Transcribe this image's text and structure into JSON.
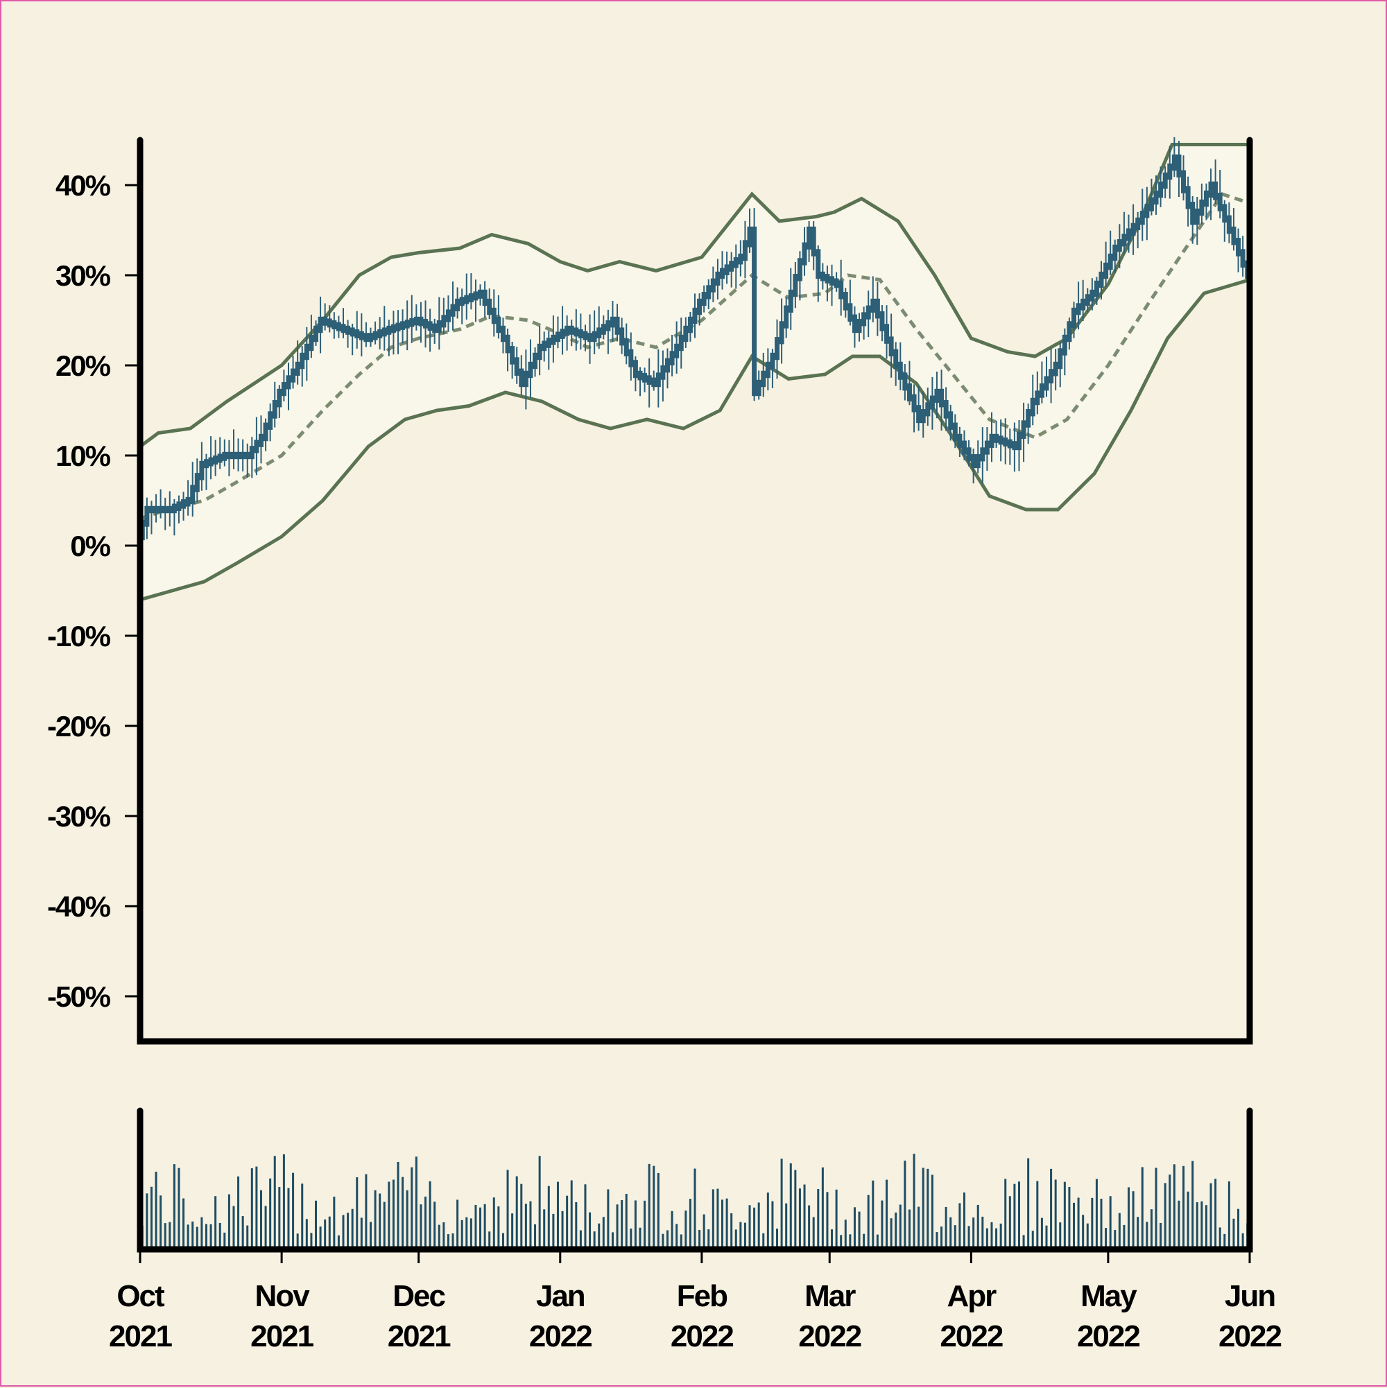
{
  "colors": {
    "background": "#f6f1e1",
    "band_fill": "#f9f6ea",
    "band_line": "#5a7352",
    "sma_line": "#7c8c72",
    "candle": "#2d5f77",
    "volume": "#1f4d63",
    "axis": "#000000"
  },
  "chart_data": {
    "type": "candlestick",
    "title": "",
    "xlabel": "",
    "ylabel": "",
    "y_format": "percent",
    "ylim": [
      -55,
      45
    ],
    "y_ticks": [
      {
        "value": 40,
        "label": "40%"
      },
      {
        "value": 30,
        "label": "30%"
      },
      {
        "value": 20,
        "label": "20%"
      },
      {
        "value": 10,
        "label": "10%"
      },
      {
        "value": 0,
        "label": "0%"
      },
      {
        "value": -10,
        "label": "-10%"
      },
      {
        "value": -20,
        "label": "-20%"
      },
      {
        "value": -30,
        "label": "-30%"
      },
      {
        "value": -40,
        "label": "-40%"
      },
      {
        "value": -50,
        "label": "-50%"
      }
    ],
    "x_range": [
      "2021-10-01",
      "2022-06-01"
    ],
    "x_ticks": [
      {
        "date": "2021-10-01",
        "month": "Oct",
        "year": "2021"
      },
      {
        "date": "2021-11-01",
        "month": "Nov",
        "year": "2021"
      },
      {
        "date": "2021-12-01",
        "month": "Dec",
        "year": "2021"
      },
      {
        "date": "2022-01-01",
        "month": "Jan",
        "year": "2022"
      },
      {
        "date": "2022-02-01",
        "month": "Feb",
        "year": "2022"
      },
      {
        "date": "2022-03-01",
        "month": "Mar",
        "year": "2022"
      },
      {
        "date": "2022-04-01",
        "month": "Apr",
        "year": "2022"
      },
      {
        "date": "2022-05-01",
        "month": "May",
        "year": "2022"
      },
      {
        "date": "2022-06-01",
        "month": "Jun",
        "year": "2022"
      }
    ],
    "price": [
      [
        "2021-10-01",
        1
      ],
      [
        "2021-10-03",
        4
      ],
      [
        "2021-10-08",
        4
      ],
      [
        "2021-10-12",
        5
      ],
      [
        "2021-10-15",
        9
      ],
      [
        "2021-10-20",
        10
      ],
      [
        "2021-10-25",
        10
      ],
      [
        "2021-10-28",
        12
      ],
      [
        "2021-11-01",
        17
      ],
      [
        "2021-11-05",
        20
      ],
      [
        "2021-11-10",
        25
      ],
      [
        "2021-11-15",
        24
      ],
      [
        "2021-11-20",
        23
      ],
      [
        "2021-11-25",
        24
      ],
      [
        "2021-12-01",
        25
      ],
      [
        "2021-12-05",
        24
      ],
      [
        "2021-12-10",
        27
      ],
      [
        "2021-12-15",
        28
      ],
      [
        "2021-12-20",
        23
      ],
      [
        "2021-12-24",
        18
      ],
      [
        "2021-12-28",
        22
      ],
      [
        "2022-01-03",
        24
      ],
      [
        "2022-01-08",
        23
      ],
      [
        "2022-01-13",
        25
      ],
      [
        "2022-01-18",
        19
      ],
      [
        "2022-01-22",
        18
      ],
      [
        "2022-01-27",
        22
      ],
      [
        "2022-02-01",
        27
      ],
      [
        "2022-02-05",
        30
      ],
      [
        "2022-02-10",
        32
      ],
      [
        "2022-02-12",
        35
      ],
      [
        "2022-02-13",
        17
      ],
      [
        "2022-02-17",
        21
      ],
      [
        "2022-02-21",
        28
      ],
      [
        "2022-02-25",
        35
      ],
      [
        "2022-02-27",
        30
      ],
      [
        "2022-03-03",
        29
      ],
      [
        "2022-03-07",
        24
      ],
      [
        "2022-03-11",
        27
      ],
      [
        "2022-03-16",
        20
      ],
      [
        "2022-03-21",
        14
      ],
      [
        "2022-03-25",
        17
      ],
      [
        "2022-03-29",
        12
      ],
      [
        "2022-04-02",
        9
      ],
      [
        "2022-04-06",
        12
      ],
      [
        "2022-04-11",
        11
      ],
      [
        "2022-04-15",
        16
      ],
      [
        "2022-04-20",
        20
      ],
      [
        "2022-04-24",
        26
      ],
      [
        "2022-04-28",
        28
      ],
      [
        "2022-05-03",
        33
      ],
      [
        "2022-05-08",
        36
      ],
      [
        "2022-05-12",
        39
      ],
      [
        "2022-05-16",
        43
      ],
      [
        "2022-05-20",
        36
      ],
      [
        "2022-05-24",
        40
      ],
      [
        "2022-05-28",
        35
      ],
      [
        "2022-06-01",
        30
      ]
    ],
    "sma": [
      [
        "2021-10-01",
        3
      ],
      [
        "2021-10-07",
        4
      ],
      [
        "2021-10-15",
        5
      ],
      [
        "2021-10-22",
        7
      ],
      [
        "2021-11-01",
        10
      ],
      [
        "2021-11-10",
        15
      ],
      [
        "2021-11-18",
        19
      ],
      [
        "2021-11-25",
        22
      ],
      [
        "2021-12-01",
        23
      ],
      [
        "2021-12-10",
        24
      ],
      [
        "2021-12-17",
        25.5
      ],
      [
        "2021-12-25",
        25
      ],
      [
        "2022-01-01",
        23.5
      ],
      [
        "2022-01-07",
        22
      ],
      [
        "2022-01-14",
        23
      ],
      [
        "2022-01-22",
        22
      ],
      [
        "2022-02-01",
        25
      ],
      [
        "2022-02-12",
        30
      ],
      [
        "2022-02-20",
        27.5
      ],
      [
        "2022-02-28",
        28
      ],
      [
        "2022-03-05",
        30
      ],
      [
        "2022-03-12",
        29.5
      ],
      [
        "2022-03-20",
        24
      ],
      [
        "2022-03-28",
        19
      ],
      [
        "2022-04-05",
        14
      ],
      [
        "2022-04-15",
        12
      ],
      [
        "2022-04-22",
        14
      ],
      [
        "2022-05-01",
        20
      ],
      [
        "2022-05-10",
        27
      ],
      [
        "2022-05-18",
        33
      ],
      [
        "2022-05-26",
        39
      ],
      [
        "2022-06-01",
        38
      ]
    ],
    "upper_band": [
      [
        "2021-10-01",
        11
      ],
      [
        "2021-10-05",
        12.5
      ],
      [
        "2021-10-12",
        13
      ],
      [
        "2021-10-20",
        16
      ],
      [
        "2021-11-01",
        20
      ],
      [
        "2021-11-10",
        25
      ],
      [
        "2021-11-18",
        30
      ],
      [
        "2021-11-25",
        32
      ],
      [
        "2021-12-01",
        32.5
      ],
      [
        "2021-12-10",
        33
      ],
      [
        "2021-12-17",
        34.5
      ],
      [
        "2021-12-25",
        33.5
      ],
      [
        "2022-01-01",
        31.5
      ],
      [
        "2022-01-07",
        30.5
      ],
      [
        "2022-01-14",
        31.5
      ],
      [
        "2022-01-22",
        30.5
      ],
      [
        "2022-02-01",
        32
      ],
      [
        "2022-02-12",
        39
      ],
      [
        "2022-02-18",
        36
      ],
      [
        "2022-02-26",
        36.5
      ],
      [
        "2022-03-02",
        37
      ],
      [
        "2022-03-08",
        38.5
      ],
      [
        "2022-03-16",
        36
      ],
      [
        "2022-03-24",
        30
      ],
      [
        "2022-04-01",
        23
      ],
      [
        "2022-04-09",
        21.5
      ],
      [
        "2022-04-15",
        21
      ],
      [
        "2022-04-22",
        23
      ],
      [
        "2022-05-01",
        29
      ],
      [
        "2022-05-08",
        36
      ],
      [
        "2022-05-15",
        44.5
      ],
      [
        "2022-06-01",
        44.5
      ]
    ],
    "lower_band": [
      [
        "2021-10-01",
        -6
      ],
      [
        "2021-10-08",
        -5
      ],
      [
        "2021-10-15",
        -4
      ],
      [
        "2021-10-22",
        -2
      ],
      [
        "2021-11-01",
        1
      ],
      [
        "2021-11-10",
        5
      ],
      [
        "2021-11-20",
        11
      ],
      [
        "2021-11-28",
        14
      ],
      [
        "2021-12-05",
        15
      ],
      [
        "2021-12-12",
        15.5
      ],
      [
        "2021-12-20",
        17
      ],
      [
        "2021-12-28",
        16
      ],
      [
        "2022-01-05",
        14
      ],
      [
        "2022-01-12",
        13
      ],
      [
        "2022-01-20",
        14
      ],
      [
        "2022-01-28",
        13
      ],
      [
        "2022-02-05",
        15
      ],
      [
        "2022-02-12",
        21
      ],
      [
        "2022-02-20",
        18.5
      ],
      [
        "2022-02-28",
        19
      ],
      [
        "2022-03-06",
        21
      ],
      [
        "2022-03-12",
        21
      ],
      [
        "2022-03-20",
        18
      ],
      [
        "2022-03-28",
        12
      ],
      [
        "2022-04-05",
        5.5
      ],
      [
        "2022-04-13",
        4
      ],
      [
        "2022-04-20",
        4
      ],
      [
        "2022-04-28",
        8
      ],
      [
        "2022-05-06",
        15
      ],
      [
        "2022-05-14",
        23
      ],
      [
        "2022-05-22",
        28
      ],
      [
        "2022-06-01",
        29.5
      ]
    ]
  }
}
